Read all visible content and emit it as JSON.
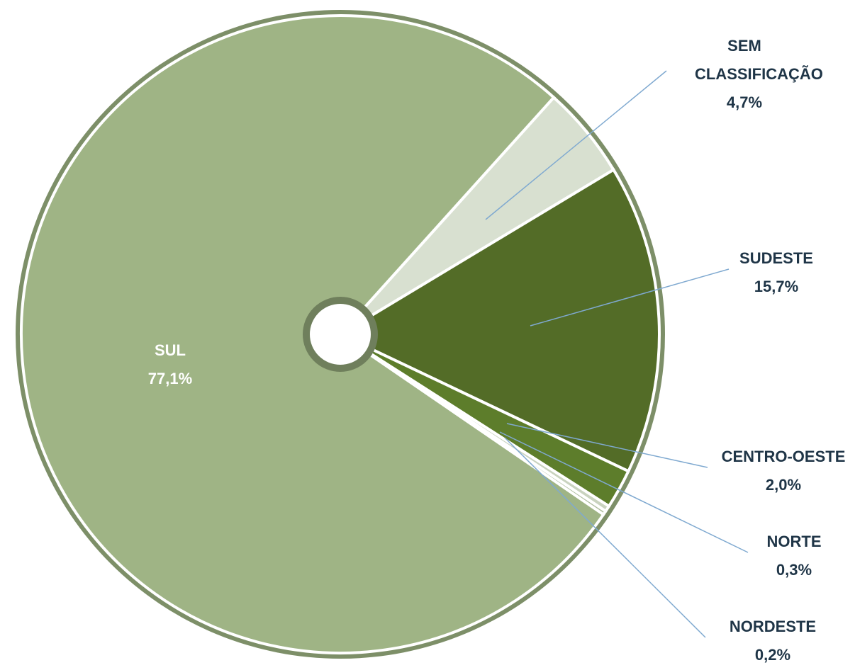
{
  "chart_data": {
    "type": "pie",
    "categories": [
      "SEM CLASSIFICAÇÃO",
      "SUDESTE",
      "CENTRO-OESTE",
      "NORTE",
      "NORDESTE",
      "SUL"
    ],
    "values": [
      4.7,
      15.7,
      2.0,
      0.3,
      0.2,
      77.1
    ],
    "value_labels": [
      "4,7%",
      "15,7%",
      "2,0%",
      "0,3%",
      "0,2%",
      "77,1%"
    ],
    "colors": [
      "#d8e0d0",
      "#536c27",
      "#5d7d2b",
      "#c9d3bf",
      "#aebd9f",
      "#9fb485"
    ]
  }
}
